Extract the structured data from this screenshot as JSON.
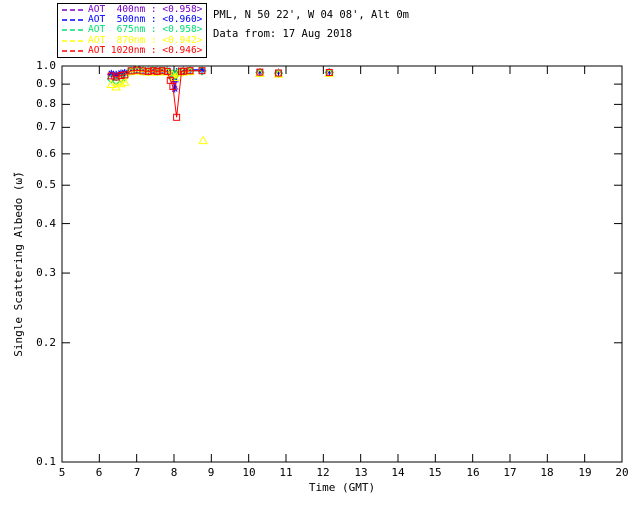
{
  "header": {
    "title_line1": "PML, N 50 22', W 04 08', Alt 0m",
    "title_line2": "Data from: 17 Aug 2018"
  },
  "chart_data": {
    "type": "line",
    "title": "PML, N 50 22', W 04 08', Alt 0m",
    "subtitle": "Data from: 17 Aug 2018",
    "xlabel": "Time (GMT)",
    "ylabel": "Single Scattering Albedo (ω̃)",
    "xlim": [
      5,
      20
    ],
    "ylim": [
      0.1,
      1.0
    ],
    "yscale": "log",
    "grid": false,
    "legend_position": "top-left",
    "frame_color": "#000000",
    "background_color": "#ffffff",
    "xticks": [
      5,
      6,
      7,
      8,
      9,
      10,
      11,
      12,
      13,
      14,
      15,
      16,
      17,
      18,
      19,
      20
    ],
    "xtick_labels": [
      "5",
      "6",
      "7",
      "8",
      "9",
      "10",
      "11",
      "12",
      "13",
      "14",
      "15",
      "16",
      "17",
      "18",
      "19",
      "20"
    ],
    "ytick_values": [
      1.0,
      0.9,
      0.8,
      0.7,
      0.6,
      0.5,
      0.4,
      0.3,
      0.2,
      0.1
    ],
    "ytick_labels": [
      "1.0",
      "0.9",
      "0.8",
      "0.7",
      "0.6",
      "0.5",
      "0.4",
      "0.3",
      "0.2",
      "0.1"
    ],
    "series": [
      {
        "name": "AOT 400nm",
        "legend_text": "AOT  400nm : <0.958>",
        "mean_value": "<0.958>",
        "color": "#7a00c8",
        "marker": "plus",
        "runs": [
          [
            [
              6.32,
              0.952
            ],
            [
              6.45,
              0.948
            ],
            [
              6.58,
              0.955
            ],
            [
              6.68,
              0.958
            ],
            [
              6.85,
              0.975
            ],
            [
              7.01,
              0.978
            ],
            [
              7.17,
              0.975
            ],
            [
              7.31,
              0.972
            ],
            [
              7.44,
              0.976
            ],
            [
              7.55,
              0.972
            ],
            [
              7.68,
              0.976
            ],
            [
              7.82,
              0.972
            ],
            [
              7.95,
              0.93
            ],
            [
              8.02,
              0.912
            ],
            [
              8.12,
              0.968
            ],
            [
              8.25,
              0.972
            ],
            [
              8.43,
              0.975
            ],
            [
              8.75,
              0.975
            ]
          ],
          [
            [
              10.3,
              0.965
            ]
          ],
          [
            [
              10.8,
              0.962
            ]
          ],
          [
            [
              12.16,
              0.965
            ]
          ]
        ]
      },
      {
        "name": "AOT 500nm",
        "legend_text": "AOT  500nm : <0.960>",
        "mean_value": "<0.960>",
        "color": "#0000ff",
        "marker": "asterisk",
        "runs": [
          [
            [
              6.32,
              0.958
            ],
            [
              6.45,
              0.953
            ],
            [
              6.58,
              0.96
            ],
            [
              6.68,
              0.963
            ],
            [
              6.85,
              0.978
            ],
            [
              7.01,
              0.982
            ],
            [
              7.17,
              0.978
            ],
            [
              7.31,
              0.975
            ],
            [
              7.44,
              0.979
            ],
            [
              7.55,
              0.975
            ],
            [
              7.68,
              0.979
            ],
            [
              7.82,
              0.975
            ],
            [
              7.95,
              0.945
            ],
            [
              8.02,
              0.875
            ],
            [
              8.12,
              0.972
            ],
            [
              8.25,
              0.975
            ],
            [
              8.43,
              0.978
            ],
            [
              8.75,
              0.978
            ]
          ],
          [
            [
              10.3,
              0.968
            ]
          ],
          [
            [
              10.8,
              0.965
            ]
          ],
          [
            [
              12.16,
              0.968
            ]
          ]
        ]
      },
      {
        "name": "AOT 675nm",
        "legend_text": "AOT  675nm : <0.958>",
        "mean_value": "<0.958>",
        "color": "#00e070",
        "marker": "diamond",
        "runs": [
          [
            [
              6.32,
              0.928
            ],
            [
              6.45,
              0.918
            ],
            [
              6.58,
              0.932
            ],
            [
              6.68,
              0.94
            ],
            [
              6.85,
              0.972
            ],
            [
              7.01,
              0.976
            ],
            [
              7.17,
              0.972
            ],
            [
              7.31,
              0.969
            ],
            [
              7.44,
              0.973
            ],
            [
              7.55,
              0.969
            ],
            [
              7.68,
              0.973
            ],
            [
              7.82,
              0.969
            ],
            [
              7.95,
              0.955
            ],
            [
              8.02,
              0.945
            ],
            [
              8.12,
              0.965
            ],
            [
              8.25,
              0.969
            ],
            [
              8.43,
              0.972
            ],
            [
              8.75,
              0.972
            ]
          ],
          [
            [
              10.3,
              0.962
            ]
          ],
          [
            [
              10.8,
              0.958
            ]
          ],
          [
            [
              12.16,
              0.962
            ]
          ]
        ]
      },
      {
        "name": "AOT 870nm",
        "legend_text": "AOT  870nm : <0.942>",
        "mean_value": "<0.942>",
        "color": "#ffff00",
        "marker": "triangle",
        "runs": [
          [
            [
              6.32,
              0.898
            ],
            [
              6.45,
              0.885
            ],
            [
              6.58,
              0.902
            ],
            [
              6.68,
              0.91
            ],
            [
              6.85,
              0.968
            ],
            [
              7.01,
              0.972
            ],
            [
              7.17,
              0.968
            ],
            [
              7.31,
              0.965
            ],
            [
              7.44,
              0.969
            ],
            [
              7.55,
              0.965
            ],
            [
              7.68,
              0.969
            ],
            [
              7.82,
              0.965
            ],
            [
              7.95,
              0.95
            ],
            [
              8.02,
              0.935
            ],
            [
              8.12,
              0.96
            ],
            [
              8.25,
              0.965
            ],
            [
              8.43,
              0.968
            ]
          ],
          [
            [
              8.78,
              0.648
            ]
          ],
          [
            [
              10.3,
              0.958
            ]
          ],
          [
            [
              10.8,
              0.954
            ]
          ],
          [
            [
              12.16,
              0.958
            ]
          ]
        ]
      },
      {
        "name": "AOT 1020nm",
        "legend_text": "AOT 1020nm : <0.946>",
        "mean_value": "<0.946>",
        "color": "#ff0000",
        "marker": "square",
        "runs": [
          [
            [
              6.32,
              0.944
            ],
            [
              6.45,
              0.938
            ],
            [
              6.58,
              0.946
            ],
            [
              6.68,
              0.95
            ],
            [
              6.85,
              0.972
            ],
            [
              7.01,
              0.976
            ],
            [
              7.17,
              0.972
            ],
            [
              7.31,
              0.969
            ],
            [
              7.44,
              0.973
            ],
            [
              7.55,
              0.969
            ],
            [
              7.68,
              0.973
            ],
            [
              7.82,
              0.969
            ],
            [
              7.9,
              0.92
            ],
            [
              7.97,
              0.888
            ],
            [
              8.07,
              0.742
            ],
            [
              8.2,
              0.97
            ],
            [
              8.25,
              0.97
            ],
            [
              8.43,
              0.973
            ],
            [
              8.75,
              0.973
            ]
          ],
          [
            [
              10.3,
              0.965
            ]
          ],
          [
            [
              10.8,
              0.96
            ]
          ],
          [
            [
              12.16,
              0.963
            ]
          ]
        ]
      }
    ]
  }
}
